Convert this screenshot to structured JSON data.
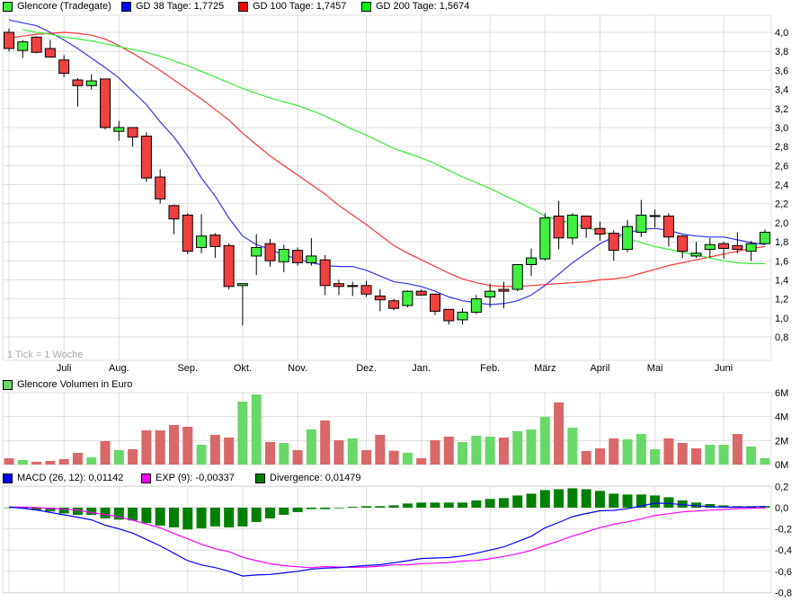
{
  "legend_price": [
    {
      "label": "Glencore (Tradegate)",
      "color": "#40f040"
    },
    {
      "label": "GD 38 Tage: 1,7725",
      "color": "#0000ff"
    },
    {
      "label": "GD 100 Tage: 1,7457",
      "color": "#ff0000"
    },
    {
      "label": "GD 200 Tage: 1,5674",
      "color": "#00ff00"
    }
  ],
  "legend_volume": {
    "label": "Glencore Volumen in Euro",
    "color": "#68d868"
  },
  "legend_macd": [
    {
      "label": "MACD (26, 12): 0,01142",
      "color": "#0000ff"
    },
    {
      "label": "EXP (9): -0,00337",
      "color": "#ff00ff"
    },
    {
      "label": "Divergence: 0,01479",
      "color": "#008000"
    }
  ],
  "tick_note": "1 Tick = 1 Woche",
  "chart_data": [
    {
      "type": "candlestick",
      "panel": "price",
      "ylim": [
        0.8,
        4.0
      ],
      "y_ticks": [
        "0,8",
        "1,0",
        "1,2",
        "1,4",
        "1,6",
        "1,8",
        "2,0",
        "2,2",
        "2,4",
        "2,6",
        "2,8",
        "3,0",
        "3,2",
        "3,4",
        "3,6",
        "3,8",
        "4,0"
      ],
      "x_ticks": [
        {
          "label": "Juli",
          "index": 4
        },
        {
          "label": "Aug.",
          "index": 8
        },
        {
          "label": "Sep.",
          "index": 13
        },
        {
          "label": "Okt.",
          "index": 17
        },
        {
          "label": "Nov.",
          "index": 21
        },
        {
          "label": "Dez.",
          "index": 26
        },
        {
          "label": "Jan.",
          "index": 30
        },
        {
          "label": "Feb.",
          "index": 35
        },
        {
          "label": "März",
          "index": 39
        },
        {
          "label": "April",
          "index": 43
        },
        {
          "label": "Mai",
          "index": 47
        },
        {
          "label": "Juni",
          "index": 52
        }
      ],
      "grid": true,
      "colors": {
        "up": "#40f040",
        "down": "#f04040"
      },
      "candles_ohlc": [
        [
          4.0,
          4.04,
          3.8,
          3.83
        ],
        [
          3.81,
          3.92,
          3.73,
          3.9
        ],
        [
          3.95,
          3.96,
          3.78,
          3.79
        ],
        [
          3.83,
          3.92,
          3.74,
          3.74
        ],
        [
          3.71,
          3.76,
          3.53,
          3.57
        ],
        [
          3.5,
          3.52,
          3.22,
          3.44
        ],
        [
          3.44,
          3.56,
          3.4,
          3.49
        ],
        [
          3.51,
          3.51,
          2.98,
          3.0
        ],
        [
          2.96,
          3.07,
          2.86,
          3.0
        ],
        [
          3.0,
          3.0,
          2.8,
          2.9
        ],
        [
          2.91,
          2.95,
          2.43,
          2.47
        ],
        [
          2.48,
          2.56,
          2.2,
          2.25
        ],
        [
          2.18,
          2.19,
          1.88,
          2.04
        ],
        [
          2.08,
          2.1,
          1.67,
          1.7
        ],
        [
          1.74,
          2.09,
          1.68,
          1.86
        ],
        [
          1.87,
          1.89,
          1.63,
          1.75
        ],
        [
          1.76,
          1.78,
          1.3,
          1.33
        ],
        [
          1.34,
          1.36,
          0.92,
          1.36
        ],
        [
          1.65,
          1.88,
          1.45,
          1.74
        ],
        [
          1.78,
          1.83,
          1.54,
          1.6
        ],
        [
          1.59,
          1.77,
          1.48,
          1.72
        ],
        [
          1.71,
          1.74,
          1.55,
          1.58
        ],
        [
          1.58,
          1.84,
          1.55,
          1.65
        ],
        [
          1.61,
          1.66,
          1.24,
          1.34
        ],
        [
          1.36,
          1.4,
          1.24,
          1.33
        ],
        [
          1.34,
          1.38,
          1.23,
          1.33
        ],
        [
          1.34,
          1.39,
          1.22,
          1.25
        ],
        [
          1.23,
          1.3,
          1.07,
          1.19
        ],
        [
          1.18,
          1.2,
          1.08,
          1.1
        ],
        [
          1.13,
          1.29,
          1.11,
          1.28
        ],
        [
          1.28,
          1.3,
          1.23,
          1.24
        ],
        [
          1.25,
          1.25,
          1.03,
          1.07
        ],
        [
          1.09,
          1.09,
          0.93,
          0.97
        ],
        [
          0.98,
          1.1,
          0.93,
          1.06
        ],
        [
          1.06,
          1.24,
          1.04,
          1.2
        ],
        [
          1.22,
          1.36,
          1.11,
          1.28
        ],
        [
          1.3,
          1.38,
          1.1,
          1.28
        ],
        [
          1.3,
          1.56,
          1.28,
          1.56
        ],
        [
          1.56,
          1.73,
          1.44,
          1.63
        ],
        [
          1.62,
          2.1,
          1.6,
          2.05
        ],
        [
          2.07,
          2.23,
          1.72,
          1.84
        ],
        [
          1.84,
          2.1,
          1.77,
          2.08
        ],
        [
          2.07,
          2.07,
          1.84,
          1.94
        ],
        [
          1.94,
          2.01,
          1.81,
          1.88
        ],
        [
          1.89,
          1.92,
          1.6,
          1.71
        ],
        [
          1.72,
          2.03,
          1.69,
          1.96
        ],
        [
          1.9,
          2.24,
          1.85,
          2.08
        ],
        [
          2.07,
          2.14,
          1.95,
          2.075
        ],
        [
          2.07,
          2.1,
          1.75,
          1.85
        ],
        [
          1.86,
          1.87,
          1.63,
          1.7
        ],
        [
          1.65,
          1.8,
          1.63,
          1.68
        ],
        [
          1.72,
          1.84,
          1.63,
          1.77
        ],
        [
          1.78,
          1.8,
          1.62,
          1.73
        ],
        [
          1.76,
          1.9,
          1.68,
          1.72
        ],
        [
          1.7,
          1.81,
          1.6,
          1.78
        ],
        [
          1.78,
          1.93,
          1.77,
          1.9
        ]
      ],
      "series": [
        {
          "name": "GD 38 Tage",
          "color": "#3333ff",
          "values": [
            4.13,
            4.1,
            4.07,
            4.0,
            3.92,
            3.83,
            3.73,
            3.63,
            3.52,
            3.38,
            3.24,
            3.06,
            2.9,
            2.7,
            2.47,
            2.28,
            2.05,
            1.86,
            1.77,
            1.72,
            1.66,
            1.62,
            1.58,
            1.55,
            1.54,
            1.54,
            1.5,
            1.44,
            1.38,
            1.36,
            1.33,
            1.28,
            1.22,
            1.18,
            1.16,
            1.14,
            1.15,
            1.18,
            1.24,
            1.34,
            1.46,
            1.58,
            1.68,
            1.78,
            1.85,
            1.89,
            1.93,
            1.94,
            1.92,
            1.88,
            1.86,
            1.85,
            1.85,
            1.82,
            1.79,
            1.77
          ]
        },
        {
          "name": "GD 100 Tage",
          "color": "#ff3333",
          "values": [
            3.94,
            3.96,
            3.98,
            3.99,
            4.0,
            3.99,
            3.97,
            3.93,
            3.86,
            3.78,
            3.69,
            3.6,
            3.5,
            3.4,
            3.3,
            3.19,
            3.08,
            2.94,
            2.82,
            2.7,
            2.6,
            2.5,
            2.4,
            2.3,
            2.18,
            2.08,
            1.98,
            1.87,
            1.76,
            1.68,
            1.61,
            1.54,
            1.47,
            1.41,
            1.37,
            1.34,
            1.33,
            1.33,
            1.34,
            1.35,
            1.36,
            1.37,
            1.38,
            1.4,
            1.41,
            1.43,
            1.47,
            1.51,
            1.55,
            1.58,
            1.61,
            1.64,
            1.67,
            1.7,
            1.73,
            1.75
          ]
        },
        {
          "name": "GD 200 Tage",
          "color": "#33ee33",
          "values": [
            null,
            4.03,
            4.0,
            3.98,
            3.95,
            3.93,
            3.91,
            3.88,
            3.85,
            3.82,
            3.79,
            3.75,
            3.7,
            3.65,
            3.59,
            3.53,
            3.47,
            3.41,
            3.36,
            3.31,
            3.27,
            3.23,
            3.18,
            3.12,
            3.05,
            2.98,
            2.92,
            2.85,
            2.78,
            2.73,
            2.68,
            2.62,
            2.55,
            2.48,
            2.42,
            2.36,
            2.29,
            2.22,
            2.15,
            2.07,
            2.03,
            1.99,
            1.95,
            1.91,
            1.87,
            1.83,
            1.79,
            1.75,
            1.72,
            1.69,
            1.66,
            1.63,
            1.6,
            1.58,
            1.57,
            1.57
          ]
        }
      ]
    },
    {
      "type": "bar",
      "panel": "volume",
      "ylim": [
        0,
        6
      ],
      "y_ticks": [
        "0M",
        "2M",
        "4M",
        "6M"
      ],
      "colors": {
        "up": "#68d868",
        "down": "#d96868"
      },
      "values_millions": [
        0.52,
        0.38,
        0.23,
        0.3,
        0.45,
        0.98,
        0.6,
        1.95,
        1.2,
        1.28,
        2.85,
        2.85,
        3.3,
        3.15,
        1.65,
        2.48,
        2.25,
        5.25,
        5.85,
        1.88,
        1.8,
        1.2,
        2.93,
        3.68,
        2.03,
        2.18,
        1.2,
        2.48,
        1.15,
        0.98,
        0.53,
        2.03,
        2.33,
        1.88,
        2.4,
        2.33,
        2.25,
        2.78,
        2.93,
        3.98,
        5.18,
        3.08,
        1.13,
        1.35,
        2.18,
        2.1,
        2.55,
        1.28,
        2.18,
        1.8,
        1.35,
        1.65,
        1.65,
        2.55,
        1.5,
        0.53
      ],
      "directions": [
        "d",
        "u",
        "d",
        "d",
        "d",
        "d",
        "u",
        "d",
        "u",
        "d",
        "d",
        "d",
        "d",
        "d",
        "u",
        "d",
        "d",
        "u",
        "u",
        "d",
        "u",
        "d",
        "u",
        "d",
        "d",
        "u",
        "d",
        "d",
        "d",
        "u",
        "d",
        "d",
        "d",
        "u",
        "u",
        "u",
        "d",
        "u",
        "u",
        "u",
        "d",
        "u",
        "d",
        "d",
        "d",
        "u",
        "u",
        "u",
        "d",
        "d",
        "d",
        "u",
        "u",
        "d",
        "u",
        "u"
      ]
    },
    {
      "type": "bar+line",
      "panel": "macd",
      "ylim": [
        -0.8,
        0.2
      ],
      "y_ticks": [
        "-0,8",
        "-0,6",
        "-0,4",
        "-0,2",
        "0,0",
        "0,2"
      ],
      "divergence": {
        "name": "Divergence",
        "color": "#008000",
        "values": [
          0,
          -0.01,
          -0.023,
          -0.037,
          -0.054,
          -0.068,
          -0.068,
          -0.101,
          -0.113,
          -0.121,
          -0.146,
          -0.169,
          -0.186,
          -0.206,
          -0.194,
          -0.177,
          -0.186,
          -0.177,
          -0.135,
          -0.101,
          -0.068,
          -0.042,
          -0.014,
          -0.014,
          -0.006,
          0.008,
          0.014,
          0.014,
          0.022,
          0.039,
          0.048,
          0.048,
          0.048,
          0.048,
          0.068,
          0.082,
          0.09,
          0.115,
          0.132,
          0.166,
          0.174,
          0.183,
          0.174,
          0.158,
          0.132,
          0.124,
          0.124,
          0.115,
          0.098,
          0.068,
          0.048,
          0.034,
          0.022,
          0.014,
          0.014,
          0.015
        ]
      },
      "macd": {
        "name": "MACD (26, 12)",
        "color": "#0000ff",
        "values": [
          0.006,
          -0.005,
          -0.022,
          -0.045,
          -0.068,
          -0.09,
          -0.115,
          -0.165,
          -0.2,
          -0.24,
          -0.3,
          -0.36,
          -0.43,
          -0.5,
          -0.54,
          -0.565,
          -0.6,
          -0.645,
          -0.635,
          -0.63,
          -0.615,
          -0.6,
          -0.58,
          -0.57,
          -0.566,
          -0.555,
          -0.545,
          -0.538,
          -0.52,
          -0.5,
          -0.48,
          -0.475,
          -0.47,
          -0.455,
          -0.43,
          -0.4,
          -0.37,
          -0.32,
          -0.27,
          -0.19,
          -0.14,
          -0.085,
          -0.055,
          -0.03,
          -0.025,
          -0.01,
          0.017,
          0.042,
          0.04,
          0.028,
          0.017,
          0.01,
          0.005,
          0.005,
          0.008,
          0.011
        ]
      },
      "signal": {
        "name": "EXP (9)",
        "color": "#ff00ff",
        "values": [
          0.006,
          0.005,
          0.001,
          -0.008,
          -0.014,
          -0.022,
          -0.047,
          -0.064,
          -0.087,
          -0.119,
          -0.154,
          -0.191,
          -0.244,
          -0.294,
          -0.346,
          -0.388,
          -0.414,
          -0.468,
          -0.5,
          -0.529,
          -0.547,
          -0.558,
          -0.566,
          -0.556,
          -0.56,
          -0.563,
          -0.559,
          -0.552,
          -0.54,
          -0.539,
          -0.528,
          -0.523,
          -0.518,
          -0.503,
          -0.498,
          -0.482,
          -0.46,
          -0.435,
          -0.402,
          -0.356,
          -0.314,
          -0.268,
          -0.229,
          -0.188,
          -0.157,
          -0.134,
          -0.107,
          -0.073,
          -0.058,
          -0.04,
          -0.031,
          -0.024,
          -0.017,
          -0.009,
          -0.006,
          -0.003
        ]
      }
    }
  ]
}
